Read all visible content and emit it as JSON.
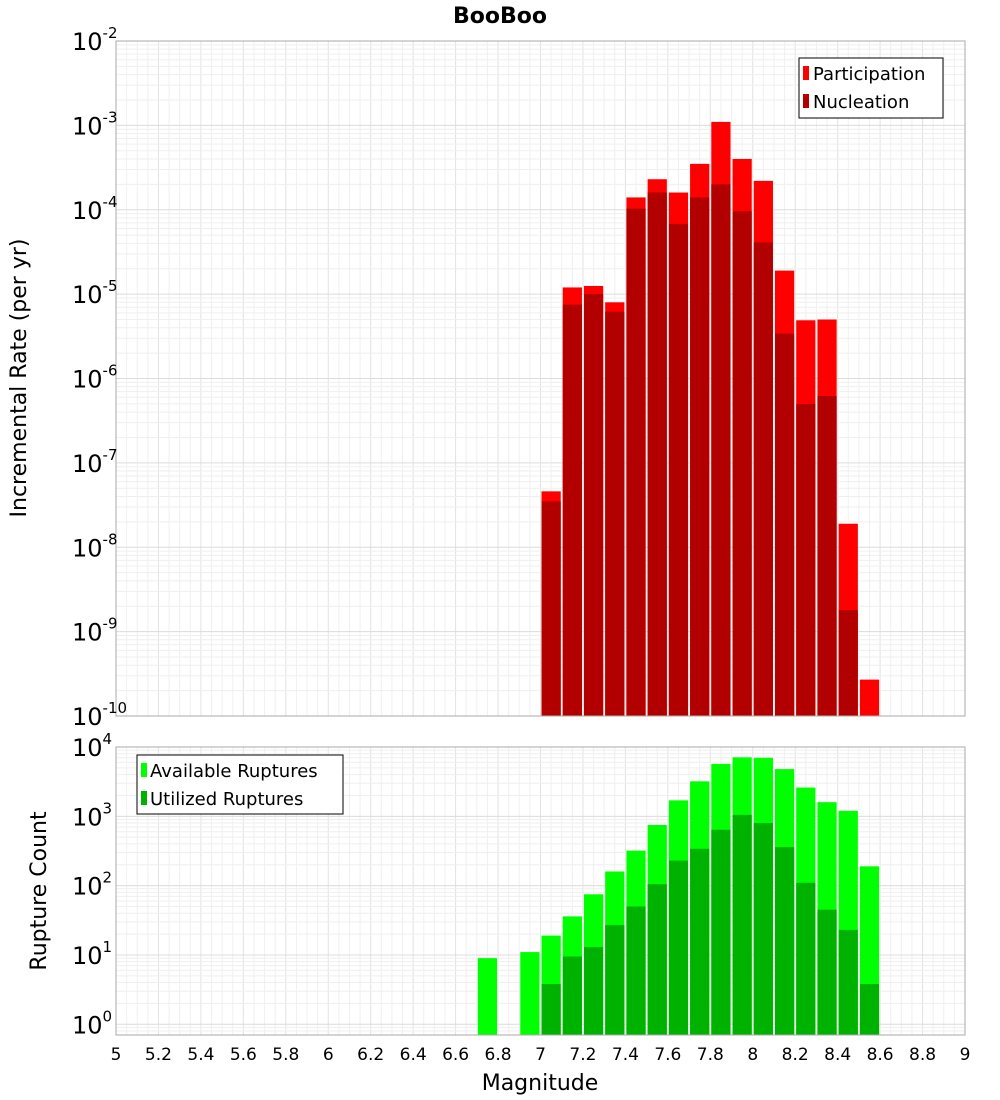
{
  "chart_data": {
    "title": "BooBoo",
    "xlabel": "Magnitude",
    "xlim": [
      5,
      9
    ],
    "xticks": [
      "5",
      "5.2",
      "5.4",
      "5.6",
      "5.8",
      "6",
      "6.2",
      "6.4",
      "6.6",
      "6.8",
      "7",
      "7.2",
      "7.4",
      "7.6",
      "7.8",
      "8",
      "8.2",
      "8.4",
      "8.6",
      "8.8",
      "9"
    ],
    "grid": true,
    "panels": [
      {
        "type": "bar",
        "ylabel": "Incremental Rate (per yr)",
        "yscale": "log",
        "ylim": [
          1e-10,
          0.01
        ],
        "ytick_exponents": [
          "-10",
          "-9",
          "-8",
          "-7",
          "-6",
          "-5",
          "-4",
          "-3",
          "-2"
        ],
        "legend_position": "top-right",
        "bin_width": 0.1,
        "x": [
          7.05,
          7.15,
          7.25,
          7.35,
          7.45,
          7.55,
          7.65,
          7.75,
          7.85,
          7.95,
          8.05,
          8.15,
          8.25,
          8.35,
          8.45,
          8.55
        ],
        "series": [
          {
            "name": "Participation",
            "color": "#ff0000",
            "values": [
              4.6e-08,
              1.2e-05,
              1.25e-05,
              8e-06,
              0.00014,
              0.00023,
              0.00016,
              0.00035,
              0.0011,
              0.0004,
              0.00022,
              1.9e-05,
              4.9e-06,
              5e-06,
              1.9e-08,
              2.7e-10
            ]
          },
          {
            "name": "Nucleation",
            "color": "#b20000",
            "values": [
              3.5e-08,
              7.5e-06,
              1e-05,
              6.2e-06,
              0.000103,
              0.00016,
              6.8e-05,
              0.00014,
              0.0002,
              9.6e-05,
              4.1e-05,
              3.4e-06,
              5e-07,
              6.2e-07,
              1.8e-09,
              null
            ]
          }
        ]
      },
      {
        "type": "bar",
        "ylabel": "Rupture Count",
        "yscale": "log",
        "ylim": [
          0.7,
          10000
        ],
        "ytick_exponents": [
          "0",
          "1",
          "2",
          "3",
          "4"
        ],
        "legend_position": "top-left",
        "bin_width": 0.1,
        "x": [
          6.75,
          6.85,
          6.95,
          7.05,
          7.15,
          7.25,
          7.35,
          7.45,
          7.55,
          7.65,
          7.75,
          7.85,
          7.95,
          8.05,
          8.15,
          8.25,
          8.35,
          8.45,
          8.55
        ],
        "series": [
          {
            "name": "Available Ruptures",
            "color": "#00ff00",
            "values": [
              9,
              null,
              11,
              19,
              36,
              75,
              160,
              320,
              750,
              1700,
              3200,
              5700,
              7100,
              7000,
              4800,
              2600,
              1600,
              1200,
              190
            ]
          },
          {
            "name": "Utilized Ruptures",
            "color": "#00b200",
            "values": [
              null,
              null,
              null,
              3.8,
              9.5,
              13,
              27,
              50,
              105,
              230,
              340,
              640,
              1050,
              800,
              360,
              110,
              45,
              23,
              3.8
            ]
          }
        ]
      }
    ]
  }
}
